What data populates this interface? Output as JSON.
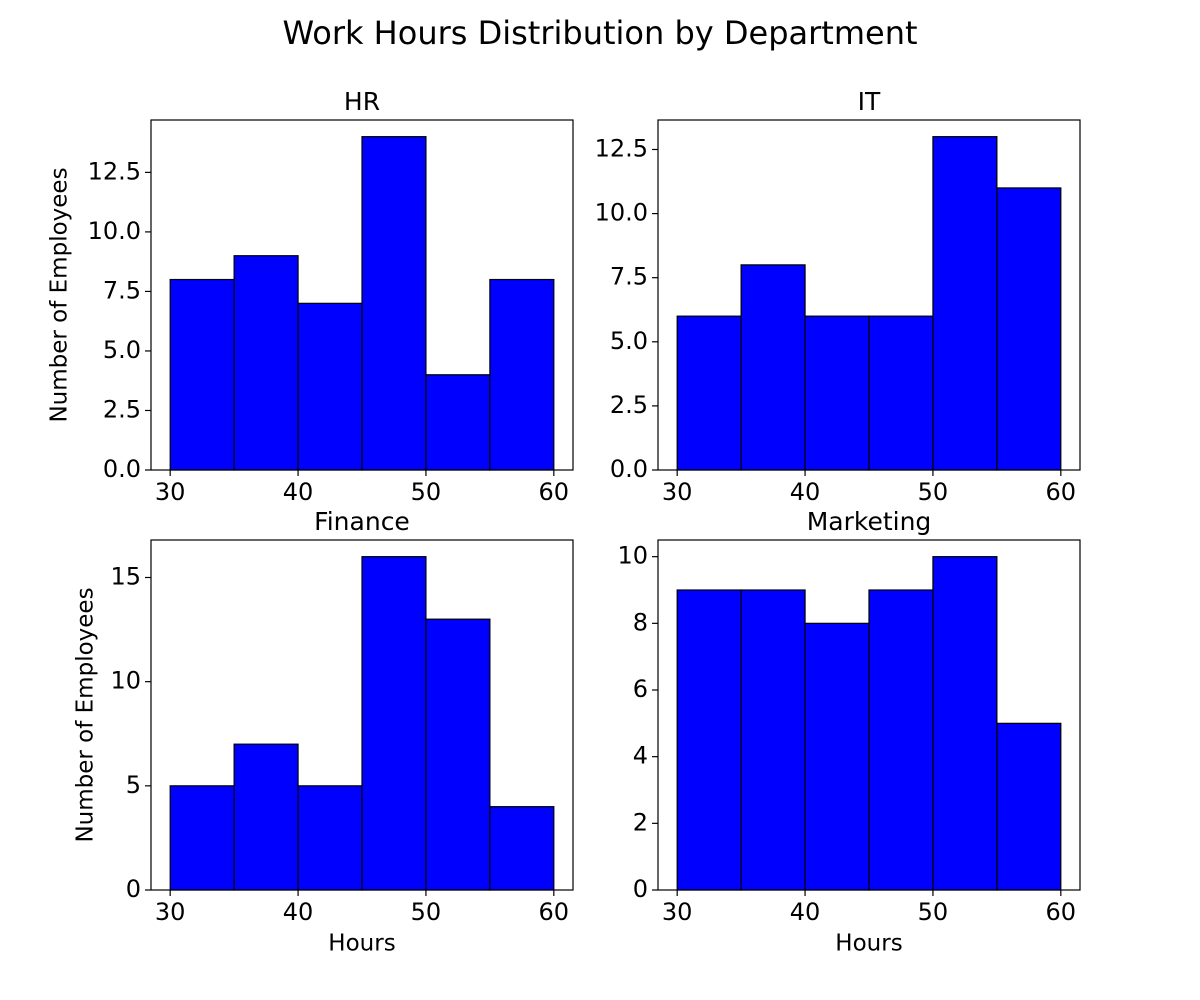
{
  "title": "Work Hours Distribution by Department",
  "chart_data": [
    {
      "type": "histogram",
      "title": "HR",
      "ylabel": "Number of Employees",
      "bins": [
        30,
        35,
        40,
        45,
        50,
        55,
        60
      ],
      "values": [
        8,
        9,
        7,
        14,
        4,
        8
      ],
      "color": "#0000ff",
      "edgecolor": "#000000",
      "xlim": [
        28.5,
        61.5
      ],
      "xticks": [
        30,
        40,
        50,
        60
      ],
      "ylim": [
        0,
        14.7
      ],
      "yticks": [
        {
          "value": 0,
          "label": "0.0"
        },
        2.5,
        {
          "value": 5,
          "label": "5.0"
        },
        7.5,
        {
          "value": 10,
          "label": "10.0"
        },
        12.5
      ]
    },
    {
      "type": "histogram",
      "title": "IT",
      "bins": [
        30,
        35,
        40,
        45,
        50,
        55,
        60
      ],
      "values": [
        6,
        8,
        6,
        6,
        13,
        11
      ],
      "color": "#0000ff",
      "edgecolor": "#000000",
      "xlim": [
        28.5,
        61.5
      ],
      "xticks": [
        30,
        40,
        50,
        60
      ],
      "ylim": [
        0,
        13.65
      ],
      "yticks": [
        {
          "value": 0,
          "label": "0.0"
        },
        2.5,
        {
          "value": 5,
          "label": "5.0"
        },
        7.5,
        {
          "value": 10,
          "label": "10.0"
        },
        12.5
      ]
    },
    {
      "type": "histogram",
      "title": "Finance",
      "xlabel": "Hours",
      "ylabel": "Number of Employees",
      "bins": [
        30,
        35,
        40,
        45,
        50,
        55,
        60
      ],
      "values": [
        5,
        7,
        5,
        16,
        13,
        4
      ],
      "color": "#0000ff",
      "edgecolor": "#000000",
      "xlim": [
        28.5,
        61.5
      ],
      "xticks": [
        30,
        40,
        50,
        60
      ],
      "ylim": [
        0,
        16.8
      ],
      "yticks": [
        0,
        5,
        10,
        15
      ]
    },
    {
      "type": "histogram",
      "title": "Marketing",
      "xlabel": "Hours",
      "bins": [
        30,
        35,
        40,
        45,
        50,
        55,
        60
      ],
      "values": [
        9,
        9,
        8,
        9,
        10,
        5
      ],
      "color": "#0000ff",
      "edgecolor": "#000000",
      "xlim": [
        28.5,
        61.5
      ],
      "xticks": [
        30,
        40,
        50,
        60
      ],
      "ylim": [
        0,
        10.5
      ],
      "yticks": [
        0,
        2,
        4,
        6,
        8,
        10
      ]
    }
  ]
}
